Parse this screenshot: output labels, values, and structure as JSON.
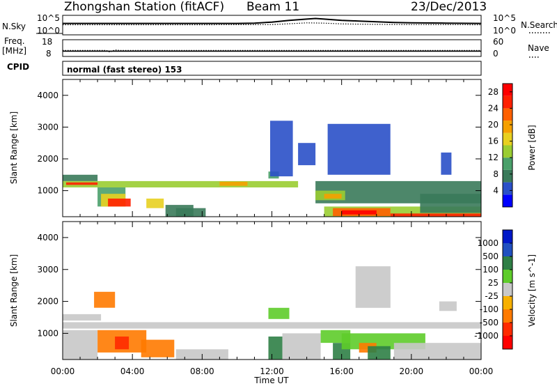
{
  "header": {
    "title": "Zhongshan Station (fitACF)",
    "beam": "Beam 11",
    "date": "23/Dec/2013"
  },
  "noise_panel": {
    "left_label": "N.Sky",
    "left_ticks": [
      "10^5",
      "10^0"
    ],
    "right_label": "N.Search",
    "right_ticks": [
      "10^5",
      "10^0"
    ]
  },
  "freq_panel": {
    "left_label_line1": "Freq.",
    "left_label_line2": "[MHz]",
    "left_ticks": [
      "18",
      "8"
    ],
    "right_label": "Nave",
    "right_ticks": [
      "60",
      "0"
    ]
  },
  "cpid": {
    "label": "CPID",
    "text": "normal (fast stereo) 153"
  },
  "time_axis": {
    "label": "Time UT",
    "ticks": [
      "00:00",
      "04:00",
      "08:00",
      "12:00",
      "16:00",
      "20:00",
      "00:00"
    ]
  },
  "chart_data": [
    {
      "type": "line",
      "title": "",
      "ylabel": "N.Sky",
      "yscale": "log",
      "ylim": [
        1,
        100000
      ],
      "y_tick_labels": [
        "10^0",
        "10^5"
      ],
      "x_unit": "hours UT",
      "xlim": [
        0,
        24
      ],
      "series": [
        {
          "name": "N.Sky",
          "style": "solid",
          "x": [
            0,
            2,
            4,
            6,
            8,
            10,
            11,
            12,
            13,
            14,
            14.5,
            15,
            16,
            17,
            18,
            19,
            20,
            22,
            24
          ],
          "y": [
            1000,
            1000,
            1000,
            1000,
            1000,
            1000,
            1200,
            2500,
            8000,
            20000,
            30000,
            20000,
            8000,
            5000,
            3000,
            2000,
            1500,
            1200,
            1000
          ]
        },
        {
          "name": "N.Search",
          "style": "dotted",
          "x": [
            0,
            4,
            8,
            12,
            13,
            14,
            15,
            16,
            18,
            20,
            24
          ],
          "y": [
            400,
            400,
            400,
            450,
            800,
            1500,
            1200,
            700,
            500,
            450,
            400
          ]
        }
      ]
    },
    {
      "type": "line",
      "title": "",
      "ylabel": "Freq. [MHz]",
      "ylim": [
        8,
        18
      ],
      "y_tick_labels": [
        "8",
        "18"
      ],
      "right_axis": {
        "label": "Nave",
        "ylim": [
          0,
          60
        ],
        "tick_labels": [
          "0",
          "60"
        ]
      },
      "x_unit": "hours UT",
      "xlim": [
        0,
        24
      ],
      "series": [
        {
          "name": "Freq.",
          "style": "solid",
          "x": [
            0,
            24
          ],
          "y": [
            10.8,
            10.8
          ]
        },
        {
          "name": "Nave",
          "style": "dotted",
          "x": [
            0,
            2.5,
            2.7,
            3.0,
            3.3,
            24
          ],
          "y": [
            20,
            20,
            13,
            22,
            20,
            20
          ]
        }
      ]
    },
    {
      "type": "heatmap",
      "title": "",
      "xlabel": "Time UT",
      "ylabel": "Slant Range [km]",
      "ylim": [
        180,
        4500
      ],
      "y_ticks": [
        1000,
        2000,
        3000,
        4000
      ],
      "x_unit": "hours UT",
      "xlim": [
        0,
        24
      ],
      "x_tick_labels": [
        "00:00",
        "04:00",
        "08:00",
        "12:00",
        "16:00",
        "20:00",
        "00:00"
      ],
      "colorbar": {
        "label": "Power [dB]",
        "range": [
          0,
          30
        ],
        "ticks": [
          4,
          8,
          12,
          16,
          20,
          24,
          28
        ],
        "colors": [
          "#0000ff",
          "#2a50c8",
          "#3a7a5a",
          "#4aa06a",
          "#9acd32",
          "#e8d020",
          "#f5a000",
          "#ff6000",
          "#ff2000",
          "#ff0000"
        ]
      },
      "regions": [
        {
          "t": [
            0.0,
            2.0
          ],
          "r": [
            1300,
            1500
          ],
          "value": 8
        },
        {
          "t": [
            0.0,
            13.5
          ],
          "r": [
            1100,
            1300
          ],
          "value": 12
        },
        {
          "t": [
            0.2,
            2.0
          ],
          "r": [
            1180,
            1260
          ],
          "value": 24
        },
        {
          "t": [
            2.0,
            3.6
          ],
          "r": [
            500,
            1100
          ],
          "value": 10
        },
        {
          "t": [
            2.2,
            3.6
          ],
          "r": [
            500,
            900
          ],
          "value": 16
        },
        {
          "t": [
            2.6,
            3.9
          ],
          "r": [
            500,
            750
          ],
          "value": 26
        },
        {
          "t": [
            4.8,
            5.8
          ],
          "r": [
            450,
            750
          ],
          "value": 16
        },
        {
          "t": [
            5.9,
            7.5
          ],
          "r": [
            180,
            550
          ],
          "value": 8
        },
        {
          "t": [
            6.5,
            8.2
          ],
          "r": [
            180,
            450
          ],
          "value": 6
        },
        {
          "t": [
            9.0,
            10.6
          ],
          "r": [
            1150,
            1280
          ],
          "value": 18
        },
        {
          "t": [
            11.8,
            12.4
          ],
          "r": [
            1380,
            1600
          ],
          "value": 9
        },
        {
          "t": [
            11.9,
            13.2
          ],
          "r": [
            1450,
            3200
          ],
          "value": 4
        },
        {
          "t": [
            13.5,
            14.5
          ],
          "r": [
            1800,
            2500
          ],
          "value": 4
        },
        {
          "t": [
            15.2,
            18.8
          ],
          "r": [
            1500,
            3100
          ],
          "value": 4
        },
        {
          "t": [
            14.5,
            24.0
          ],
          "r": [
            600,
            1300
          ],
          "value": 8
        },
        {
          "t": [
            14.5,
            16.2
          ],
          "r": [
            700,
            1000
          ],
          "value": 12
        },
        {
          "t": [
            15.0,
            16.0
          ],
          "r": [
            750,
            900
          ],
          "value": 18
        },
        {
          "t": [
            15.0,
            24.0
          ],
          "r": [
            180,
            500
          ],
          "value": 12
        },
        {
          "t": [
            15.5,
            18.8
          ],
          "r": [
            200,
            450
          ],
          "value": 22
        },
        {
          "t": [
            16.0,
            18.0
          ],
          "r": [
            250,
            380
          ],
          "value": 28
        },
        {
          "t": [
            18.8,
            24.0
          ],
          "r": [
            180,
            280
          ],
          "value": 26
        },
        {
          "t": [
            20.5,
            24.0
          ],
          "r": [
            300,
            900
          ],
          "value": 8
        },
        {
          "t": [
            21.7,
            22.3
          ],
          "r": [
            1500,
            2200
          ],
          "value": 4
        }
      ]
    },
    {
      "type": "heatmap",
      "title": "",
      "xlabel": "Time UT",
      "ylabel": "Slant Range [km]",
      "ylim": [
        180,
        4500
      ],
      "y_ticks": [
        1000,
        2000,
        3000,
        4000
      ],
      "x_unit": "hours UT",
      "xlim": [
        0,
        24
      ],
      "x_tick_labels": [
        "00:00",
        "04:00",
        "08:00",
        "12:00",
        "16:00",
        "20:00",
        "00:00"
      ],
      "colorbar": {
        "label": "Velocity [m s^-1]",
        "ticks": [
          "1000",
          "500",
          "100",
          "25",
          "-25",
          "-100",
          "-500",
          "-1000"
        ],
        "colors": [
          "#0018c8",
          "#2050c0",
          "#2f7f46",
          "#5ecc2a",
          "#c8c8c8",
          "#f7b000",
          "#ff7a00",
          "#ff2a00",
          "#ff0000"
        ]
      },
      "regions": [
        {
          "t": [
            0.0,
            24.0
          ],
          "r": [
            1150,
            1350
          ],
          "value": 0
        },
        {
          "t": [
            0.0,
            2.2
          ],
          "r": [
            1400,
            1600
          ],
          "value": 0
        },
        {
          "t": [
            0.0,
            2.0
          ],
          "r": [
            180,
            1100
          ],
          "value": 0
        },
        {
          "t": [
            1.8,
            3.0
          ],
          "r": [
            1800,
            2300
          ],
          "value": -150
        },
        {
          "t": [
            2.0,
            4.8
          ],
          "r": [
            400,
            1100
          ],
          "value": -300
        },
        {
          "t": [
            3.0,
            3.8
          ],
          "r": [
            500,
            900
          ],
          "value": -700
        },
        {
          "t": [
            4.5,
            6.4
          ],
          "r": [
            250,
            800
          ],
          "value": -300
        },
        {
          "t": [
            6.5,
            9.5
          ],
          "r": [
            180,
            500
          ],
          "value": 0
        },
        {
          "t": [
            11.8,
            13.0
          ],
          "r": [
            1450,
            1800
          ],
          "value": 60
        },
        {
          "t": [
            11.8,
            12.6
          ],
          "r": [
            180,
            900
          ],
          "value": 150
        },
        {
          "t": [
            12.6,
            14.8
          ],
          "r": [
            180,
            1000
          ],
          "value": 0
        },
        {
          "t": [
            14.8,
            16.5
          ],
          "r": [
            700,
            1100
          ],
          "value": 60
        },
        {
          "t": [
            15.5,
            16.5
          ],
          "r": [
            180,
            700
          ],
          "value": 200
        },
        {
          "t": [
            16.0,
            20.8
          ],
          "r": [
            500,
            1000
          ],
          "value": 60
        },
        {
          "t": [
            17.0,
            18.0
          ],
          "r": [
            400,
            700
          ],
          "value": -150
        },
        {
          "t": [
            17.5,
            18.8
          ],
          "r": [
            180,
            600
          ],
          "value": 200
        },
        {
          "t": [
            16.8,
            18.8
          ],
          "r": [
            1800,
            3100
          ],
          "value": 0
        },
        {
          "t": [
            19.0,
            24.0
          ],
          "r": [
            180,
            700
          ],
          "value": 0
        },
        {
          "t": [
            21.6,
            22.6
          ],
          "r": [
            1700,
            2000
          ],
          "value": 0
        }
      ]
    }
  ]
}
